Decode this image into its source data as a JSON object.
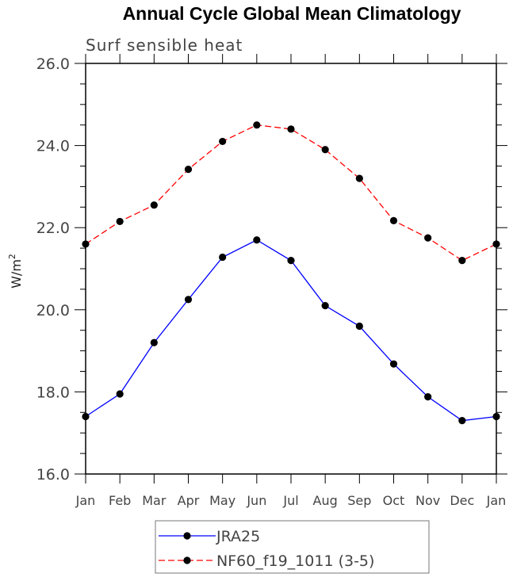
{
  "chart_data": {
    "type": "line",
    "title": "Annual Cycle Global Mean Climatology",
    "subtitle": "Surf sensible heat",
    "xlabel": "",
    "ylabel": "W/m",
    "ylabel_sup": "2",
    "categories": [
      "Jan",
      "Feb",
      "Mar",
      "Apr",
      "May",
      "Jun",
      "Jul",
      "Aug",
      "Sep",
      "Oct",
      "Nov",
      "Dec",
      "Jan"
    ],
    "ylim": [
      16.0,
      26.0
    ],
    "yticks": [
      16.0,
      18.0,
      20.0,
      22.0,
      24.0,
      26.0
    ],
    "ytick_labels": [
      "16.0",
      "18.0",
      "20.0",
      "22.0",
      "24.0",
      "26.0"
    ],
    "series": [
      {
        "name": "JRA25",
        "color": "#0000ff",
        "dash": "solid",
        "marker": "circle",
        "values": [
          17.4,
          17.95,
          19.2,
          20.25,
          21.28,
          21.7,
          21.2,
          20.1,
          19.6,
          18.68,
          17.88,
          17.3,
          17.4
        ]
      },
      {
        "name": "NF60_f19_1011 (3-5)",
        "color": "#ff0000",
        "dash": "dashed",
        "marker": "circle",
        "values": [
          21.6,
          22.15,
          22.55,
          23.42,
          24.1,
          24.5,
          24.4,
          23.9,
          23.2,
          22.17,
          21.75,
          21.2,
          21.6
        ]
      }
    ],
    "legend": {
      "position": "bottom",
      "entries": [
        "JRA25",
        "NF60_f19_1011 (3-5)"
      ]
    }
  }
}
